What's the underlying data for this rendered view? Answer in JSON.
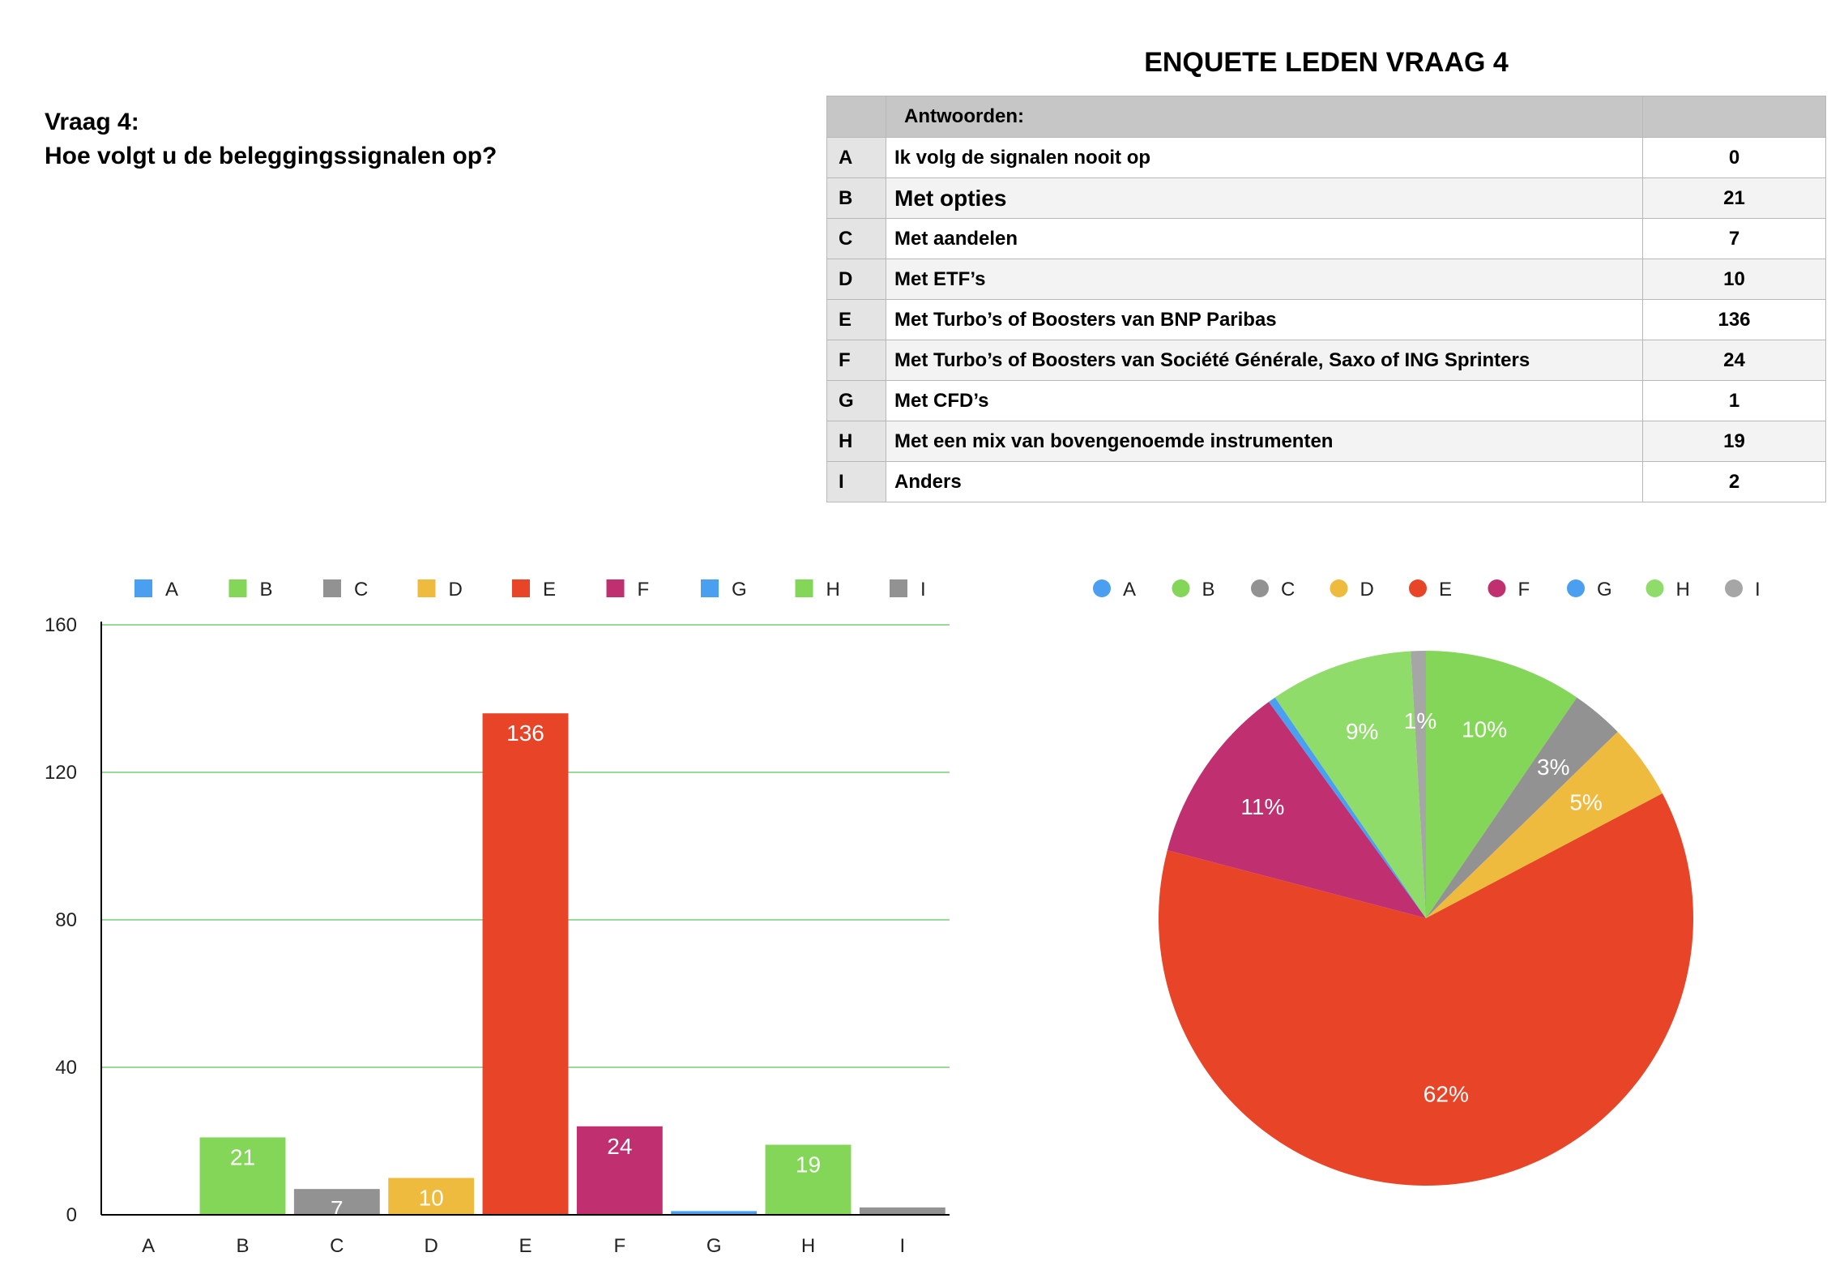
{
  "question": {
    "line1": "Vraag 4:",
    "line2": "Hoe volgt u de beleggingssignalen op?"
  },
  "table": {
    "title": "ENQUETE LEDEN VRAAG 4",
    "header": "Antwoorden:",
    "rows": [
      {
        "letter": "A",
        "text": "Ik volg de signalen nooit op",
        "count": "0"
      },
      {
        "letter": "B",
        "text": "Met opties",
        "count": "21"
      },
      {
        "letter": "C",
        "text": "Met aandelen",
        "count": "7"
      },
      {
        "letter": "D",
        "text": "Met ETF’s",
        "count": "10"
      },
      {
        "letter": "E",
        "text": "Met Turbo’s of Boosters van BNP Paribas",
        "count": "136"
      },
      {
        "letter": "F",
        "text": "Met Turbo’s of Boosters van Société Générale, Saxo  of ING Sprinters",
        "count": "24"
      },
      {
        "letter": "G",
        "text": "Met CFD’s",
        "count": "1"
      },
      {
        "letter": "H",
        "text": "Met een mix van bovengenoemde instrumenten",
        "count": "19"
      },
      {
        "letter": "I",
        "text": "Anders",
        "count": "2"
      }
    ]
  },
  "chart_data": [
    {
      "type": "bar",
      "categories": [
        "A",
        "B",
        "C",
        "D",
        "E",
        "F",
        "G",
        "H",
        "I"
      ],
      "values": [
        0,
        21,
        7,
        10,
        136,
        24,
        1,
        19,
        2
      ],
      "data_labels": [
        "",
        "21",
        "7",
        "10",
        "136",
        "24",
        "",
        "19",
        ""
      ],
      "colors": [
        "#4a9ff0",
        "#84d658",
        "#929292",
        "#efbb3e",
        "#e84427",
        "#c03070",
        "#4a9ff0",
        "#84d658",
        "#929292"
      ],
      "ylim": [
        0,
        160
      ],
      "yticks": [
        0,
        40,
        80,
        120,
        160
      ],
      "grid": true,
      "grid_color": "#5cc25c",
      "legend": "top",
      "legend_shape": "square"
    },
    {
      "type": "pie",
      "categories": [
        "A",
        "B",
        "C",
        "D",
        "E",
        "F",
        "G",
        "H",
        "I"
      ],
      "values": [
        0,
        21,
        7,
        10,
        136,
        24,
        1,
        19,
        2
      ],
      "labels": [
        "",
        "10%",
        "3%",
        "5%",
        "62%",
        "11%",
        "",
        "9%",
        "1%"
      ],
      "colors": [
        "#4a9ff0",
        "#84d658",
        "#929292",
        "#efbb3e",
        "#e84427",
        "#c03070",
        "#4a9ff0",
        "#8fdc6a",
        "#a6a6a6"
      ],
      "legend": "top",
      "legend_shape": "circle"
    }
  ]
}
